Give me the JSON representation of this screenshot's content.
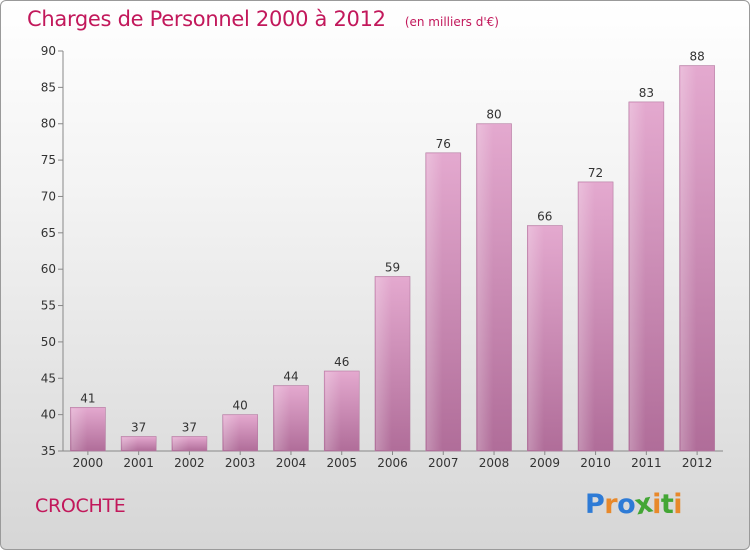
{
  "header": {
    "title": "Charges de Personnel 2000 à 2012",
    "subtitle": "(en milliers d'€)"
  },
  "footer": {
    "commune": "CROCHTE",
    "brand": "Proxiti",
    "brand_colors": [
      "#2e7bd6",
      "#e8892b",
      "#2e7bd6",
      "#43a635",
      "#e8892b",
      "#43a635",
      "#e8892b"
    ]
  },
  "chart_data": {
    "type": "bar",
    "title": "Charges de Personnel 2000 à 2012",
    "subtitle": "(en milliers d'€)",
    "categories": [
      "2000",
      "2001",
      "2002",
      "2003",
      "2004",
      "2005",
      "2006",
      "2007",
      "2008",
      "2009",
      "2010",
      "2011",
      "2012"
    ],
    "values": [
      41,
      37,
      37,
      40,
      44,
      46,
      59,
      76,
      80,
      66,
      72,
      83,
      88
    ],
    "ylim": [
      35,
      90
    ],
    "yticks": [
      35,
      40,
      45,
      50,
      55,
      60,
      65,
      70,
      75,
      80,
      85,
      90
    ],
    "grid": false,
    "bar_color": "#d98ab8",
    "data_labels": true
  }
}
